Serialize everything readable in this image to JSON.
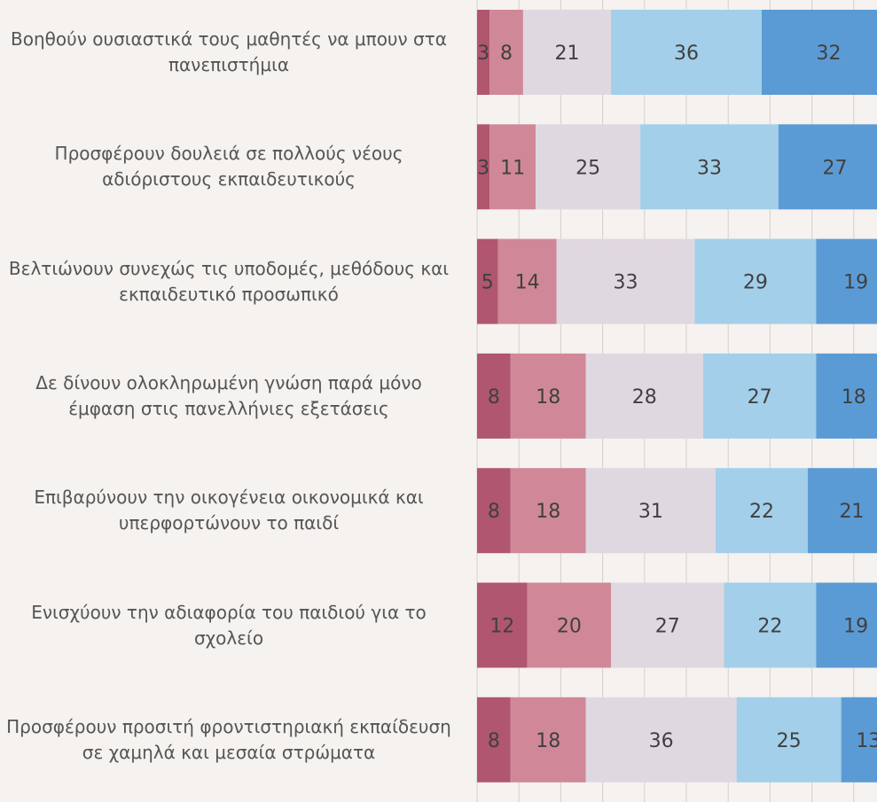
{
  "chart_data": {
    "type": "stacked-bar-horizontal",
    "categories": [
      "Βοηθούν ουσιαστικά τους μαθητές να μπουν στα πανεπιστήμια",
      "Προσφέρουν δουλειά σε πολλούς νέους αδιόριστους εκπαιδευτικούς",
      "Βελτιώνουν συνεχώς τις υποδομές, μεθόδους και εκπαιδευτικό προσωπικό",
      "Δε δίνουν ολοκληρωμένη γνώση παρά μόνο έμφαση στις πανελλήνιες εξετάσεις",
      "Επιβαρύνουν την οικογένεια οικονομικά και υπερφορτώνουν το παιδί",
      "Ενισχύουν την αδιαφορία του παιδιού για το σχολείο",
      "Προσφέρουν προσιτή φροντιστηριακή εκπαίδευση σε χαμηλά και μεσαία στρώματα"
    ],
    "series": [
      {
        "color": "#b0566e",
        "values": [
          3,
          3,
          5,
          8,
          8,
          12,
          8
        ]
      },
      {
        "color": "#d08898",
        "values": [
          8,
          11,
          14,
          18,
          18,
          20,
          18
        ]
      },
      {
        "color": "#e0d8e0",
        "values": [
          21,
          25,
          33,
          28,
          31,
          27,
          36
        ]
      },
      {
        "color": "#a3cfea",
        "values": [
          36,
          33,
          29,
          27,
          22,
          22,
          25
        ]
      },
      {
        "color": "#5b9bd5",
        "values": [
          32,
          27,
          19,
          18,
          21,
          19,
          13
        ]
      }
    ],
    "xlim": [
      0,
      100
    ],
    "xticks": [
      0,
      10,
      20,
      30,
      40,
      50,
      60,
      70,
      80,
      90,
      100
    ],
    "grid": true
  }
}
